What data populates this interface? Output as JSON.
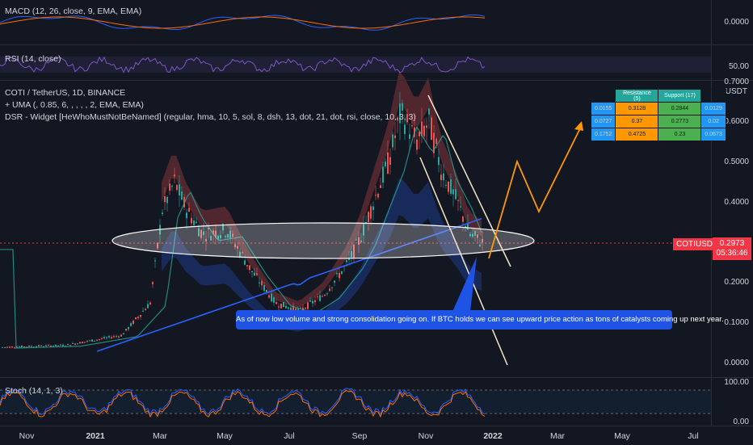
{
  "macd": {
    "label": "MACD (12, 26, close, 9, EMA, EMA)",
    "axis_value": "0.0000"
  },
  "rsi": {
    "label": "RSI (14, close)",
    "axis_value": "50.00"
  },
  "main": {
    "legend": [
      "COTI / TetherUS, 1D, BINANCE",
      "+ UMA (, 0.85, 6, , , , , 2, EMA, EMA)",
      "DSR - Widget [HeWhoMustNotBeNamed] (regular, hma, 10, 5, sol, 8, dsh, 13, dot, 21, dot, rsi, close, 10, 3, 3)"
    ],
    "price_axis": [
      "0.7000",
      "0.6000",
      "0.5000",
      "0.4000",
      "0.2000",
      "0.1000",
      "0.0000"
    ],
    "currency": "USDT",
    "symbol_tag": "COTIUSDT",
    "last_price": "0.2973",
    "countdown": "05:36:46",
    "callout": "As of now low volume and strong consolidation going on. If BTC holds we can see upward price action as tons of catalysts coming up next year."
  },
  "dsr_table": {
    "headers": [
      "Resistance (5)",
      "Support (17)"
    ],
    "rows": [
      {
        "left": "0.0155",
        "res": "0.3128",
        "sup": "0.2844",
        "right": "0.0129"
      },
      {
        "left": "0.0727",
        "res": "0.37",
        "sup": "0.2773",
        "right": "0.02"
      },
      {
        "left": "0.1752",
        "res": "0.4725",
        "sup": "0.23",
        "right": "0.0673"
      }
    ]
  },
  "stoch": {
    "label": "Stoch (14, 1, 3)",
    "axis": [
      "100.00",
      "0.00"
    ]
  },
  "dates": [
    {
      "label": "Nov",
      "bold": false
    },
    {
      "label": "2021",
      "bold": true
    },
    {
      "label": "Mar",
      "bold": false
    },
    {
      "label": "May",
      "bold": false
    },
    {
      "label": "Jul",
      "bold": false
    },
    {
      "label": "Sep",
      "bold": false
    },
    {
      "label": "Nov",
      "bold": false
    },
    {
      "label": "2022",
      "bold": true
    },
    {
      "label": "Mar",
      "bold": false
    },
    {
      "label": "May",
      "bold": false
    },
    {
      "label": "Jul",
      "bold": false
    }
  ],
  "colors": {
    "bg": "#131722",
    "up": "#26a69a",
    "down": "#ef5350",
    "accent": "#2962ff",
    "projection": "#ff9800"
  }
}
